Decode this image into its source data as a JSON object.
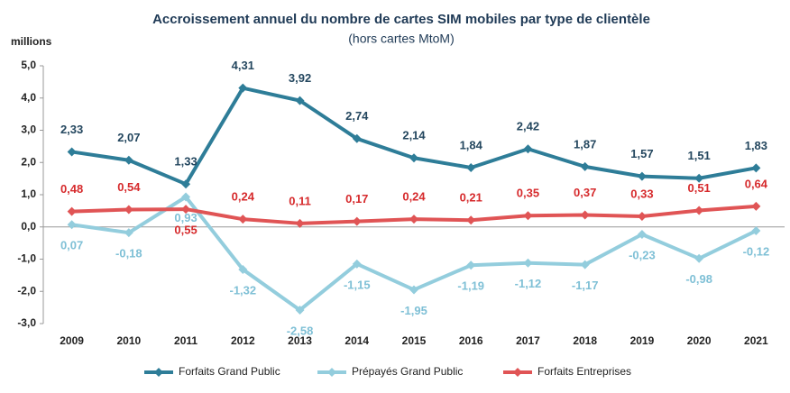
{
  "chart_data": {
    "type": "line",
    "title": "Accroissement annuel du nombre de cartes SIM mobiles par type de clientèle",
    "subtitle": "(hors cartes MtoM)",
    "y_label": "millions",
    "categories": [
      "2009",
      "2010",
      "2011",
      "2012",
      "2013",
      "2014",
      "2015",
      "2016",
      "2017",
      "2018",
      "2019",
      "2020",
      "2021"
    ],
    "ylim": [
      -3,
      5
    ],
    "yticks": [
      {
        "value": 5,
        "label": "5,0"
      },
      {
        "value": 4,
        "label": "4,0"
      },
      {
        "value": 3,
        "label": "3,0"
      },
      {
        "value": 2,
        "label": "2,0"
      },
      {
        "value": 1,
        "label": "1,0"
      },
      {
        "value": 0,
        "label": "0,0"
      },
      {
        "value": -1,
        "label": "-1,0"
      },
      {
        "value": -2,
        "label": "-2,0"
      },
      {
        "value": -3,
        "label": "-3,0"
      }
    ],
    "series": [
      {
        "name": "Forfaits Grand Public",
        "color": "#2e7d98",
        "values": [
          2.33,
          2.07,
          1.33,
          4.31,
          3.92,
          2.74,
          2.14,
          1.84,
          2.42,
          1.87,
          1.57,
          1.51,
          1.83
        ],
        "value_labels": [
          "2,33",
          "2,07",
          "1,33",
          "4,31",
          "3,92",
          "2,74",
          "2,14",
          "1,84",
          "2,42",
          "1,87",
          "1,57",
          "1,51",
          "1,83"
        ]
      },
      {
        "name": "Prépayés Grand Public",
        "color": "#93cddd",
        "values": [
          0.07,
          -0.18,
          0.93,
          -1.32,
          -2.58,
          -1.15,
          -1.95,
          -1.19,
          -1.12,
          -1.17,
          -0.23,
          -0.98,
          -0.12
        ],
        "value_labels": [
          "0,07",
          "-0,18",
          "0,93",
          "-1,32",
          "-2,58",
          "-1,15",
          "-1,95",
          "-1,19",
          "-1,12",
          "-1,17",
          "-0,23",
          "-0,98",
          "-0,12"
        ]
      },
      {
        "name": "Forfaits Entreprises",
        "color": "#e05455",
        "values": [
          0.48,
          0.54,
          0.55,
          0.24,
          0.11,
          0.17,
          0.24,
          0.21,
          0.35,
          0.37,
          0.33,
          0.51,
          0.64
        ],
        "value_labels": [
          "0,48",
          "0,54",
          "0,55",
          "0,24",
          "0,11",
          "0,17",
          "0,24",
          "0,21",
          "0,35",
          "0,37",
          "0,33",
          "0,51",
          "0,64"
        ]
      }
    ]
  }
}
